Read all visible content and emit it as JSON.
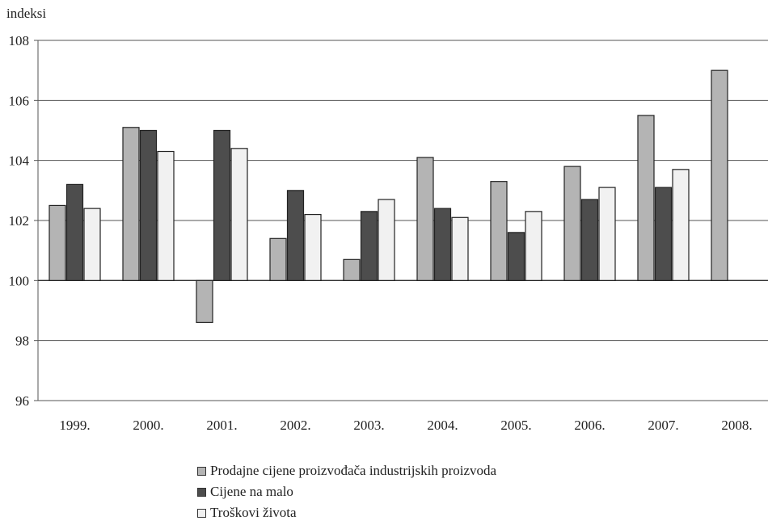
{
  "chart_data": {
    "type": "bar",
    "ylabel": "indeksi",
    "ylim": [
      96,
      108
    ],
    "yticks": [
      "96",
      "98",
      "100",
      "102",
      "104",
      "106",
      "108"
    ],
    "baseline": 100,
    "grid": true,
    "legend_position": "bottom",
    "categories": [
      "1999.",
      "2000.",
      "2001.",
      "2002.",
      "2003.",
      "2004.",
      "2005.",
      "2006.",
      "2007.",
      "2008."
    ],
    "series": [
      {
        "name": "Prodajne cijene proizvođača industrijskih proizvoda",
        "color": "#b4b4b4",
        "values": [
          102.5,
          105.1,
          98.6,
          101.4,
          100.7,
          104.1,
          103.3,
          103.8,
          105.5,
          107.0
        ]
      },
      {
        "name": "Cijene na malo",
        "color": "#4d4d4d",
        "values": [
          103.2,
          105.0,
          105.0,
          103.0,
          102.3,
          102.4,
          101.6,
          102.7,
          103.1,
          null
        ]
      },
      {
        "name": "Troškovi života",
        "color": "#f1f1f1",
        "values": [
          102.4,
          104.3,
          104.4,
          102.2,
          102.7,
          102.1,
          102.3,
          103.1,
          103.7,
          null
        ]
      }
    ]
  }
}
